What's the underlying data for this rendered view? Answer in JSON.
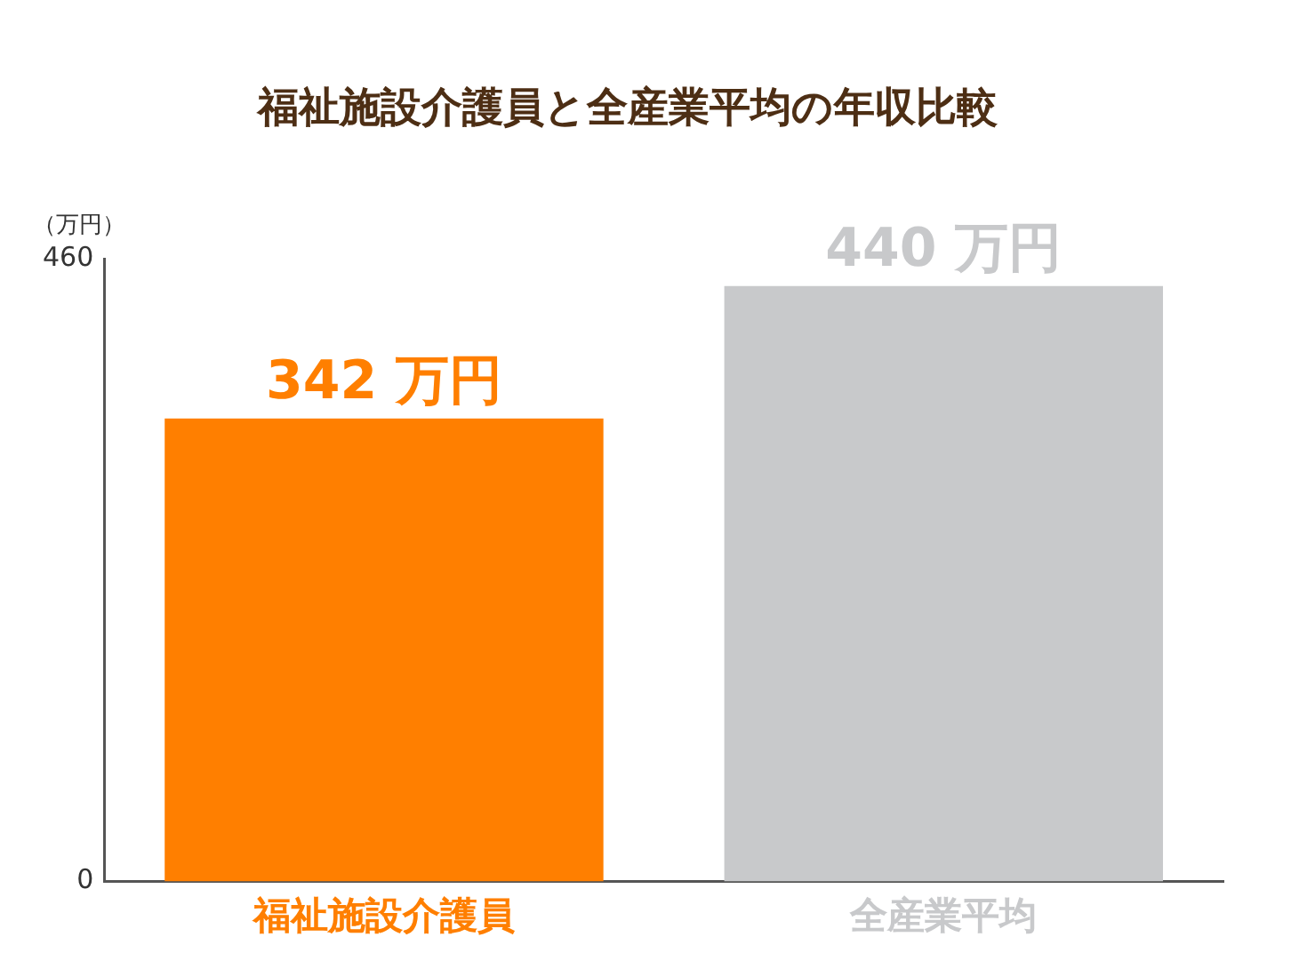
{
  "chart_data": {
    "type": "bar",
    "title": "福祉施設介護員と全産業平均の年収比較",
    "ylabel": "（万円）",
    "categories": [
      "福祉施設介護員",
      "全産業平均"
    ],
    "values": [
      342,
      440
    ],
    "colors": [
      "#ff7f00",
      "#c8c9cb"
    ],
    "value_labels": [
      "342 万円",
      "440 万円"
    ],
    "ylim": [
      0,
      460
    ],
    "yticks": [
      0,
      460
    ],
    "grid": false,
    "legend": false
  }
}
